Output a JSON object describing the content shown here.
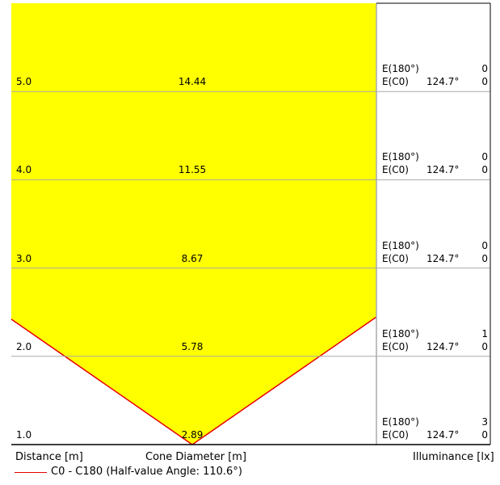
{
  "chart_data": {
    "type": "cone-diagram",
    "rows": [
      {
        "distance": "5.0",
        "diameter": "14.44",
        "e180_label": "E(180°)",
        "e180": "0",
        "ec0_label": "E(C0)",
        "ec0_angle": "124.7°",
        "ec0": "0"
      },
      {
        "distance": "4.0",
        "diameter": "11.55",
        "e180_label": "E(180°)",
        "e180": "0",
        "ec0_label": "E(C0)",
        "ec0_angle": "124.7°",
        "ec0": "0"
      },
      {
        "distance": "3.0",
        "diameter": "8.67",
        "e180_label": "E(180°)",
        "e180": "0",
        "ec0_label": "E(C0)",
        "ec0_angle": "124.7°",
        "ec0": "0"
      },
      {
        "distance": "2.0",
        "diameter": "5.78",
        "e180_label": "E(180°)",
        "e180": "1",
        "ec0_label": "E(C0)",
        "ec0_angle": "124.7°",
        "ec0": "0"
      },
      {
        "distance": "1.0",
        "diameter": "2.89",
        "e180_label": "E(180°)",
        "e180": "3",
        "ec0_label": "E(C0)",
        "ec0_angle": "124.7°",
        "ec0": "0"
      }
    ],
    "half_value_angle_deg": 110.6,
    "max_distance": 5.0,
    "colors": {
      "cone_fill": "#ffff00",
      "cone_edge": "#e60000",
      "grid": "#aaaaaa",
      "frame": "#000000"
    }
  },
  "footer": {
    "distance_label": "Distance [m]",
    "diameter_label": "Cone Diameter [m]",
    "illuminance_label": "Illuminance [lx]",
    "legend_text": "C0 - C180 (Half-value Angle: 110.6°)"
  }
}
